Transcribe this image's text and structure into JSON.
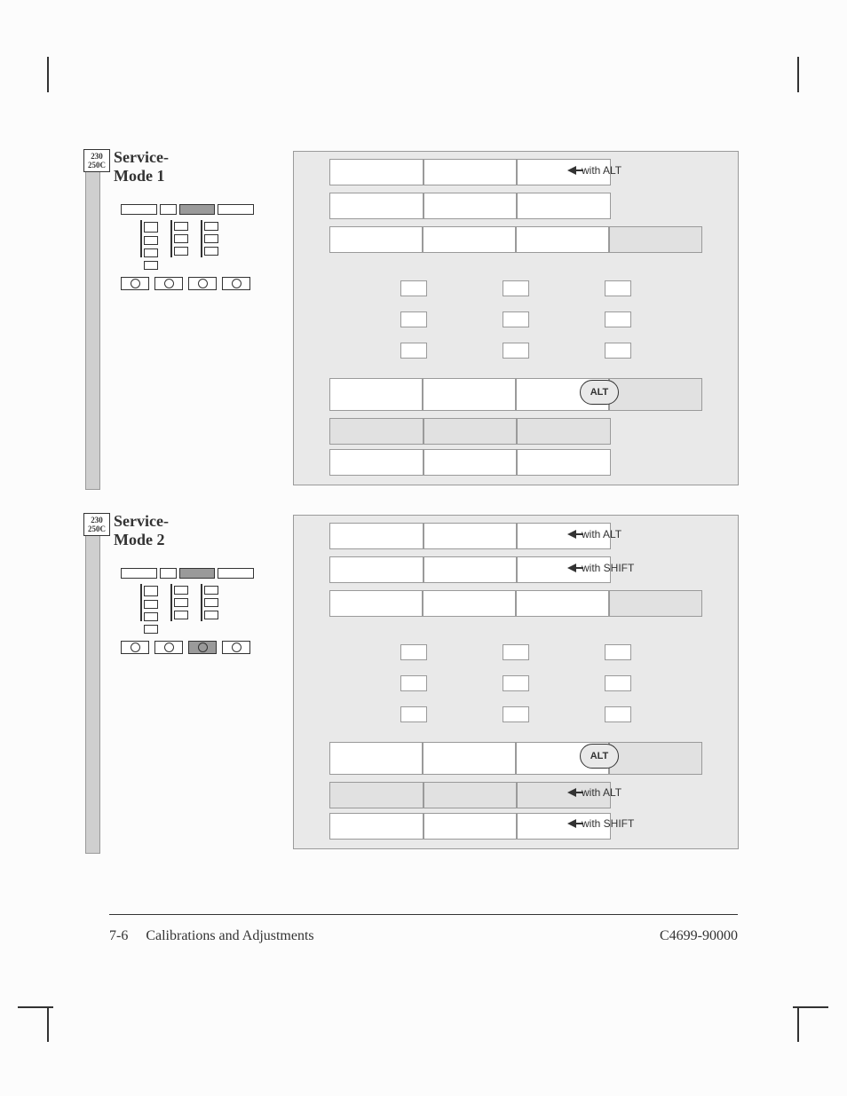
{
  "page": {
    "number": "7-6",
    "section": "Calibrations and Adjustments",
    "doc_id": "C4699-90000"
  },
  "tag": {
    "line1": "230",
    "line2": "250C"
  },
  "sections": [
    {
      "title": "Service-Mode 1",
      "panel_highlight": 2,
      "notes": [
        {
          "slot": "r1",
          "text": "with ALT"
        }
      ],
      "alt_label": "ALT",
      "bottom_button_dark": null
    },
    {
      "title": "Service-Mode 2",
      "panel_highlight": 2,
      "notes": [
        {
          "slot": "r1",
          "text": "with ALT"
        },
        {
          "slot": "r2",
          "text": "with SHIFT"
        },
        {
          "slot": "r5",
          "text": "with ALT"
        },
        {
          "slot": "r6",
          "text": "with SHIFT"
        }
      ],
      "alt_label": "ALT",
      "bottom_button_dark": 2
    }
  ],
  "colors": {
    "page_bg": "#fcfcfc",
    "panel_bg": "#e9e9e9",
    "cell_bg": "#e1e1e1",
    "border": "#9a9a9a",
    "ink": "#333333"
  }
}
